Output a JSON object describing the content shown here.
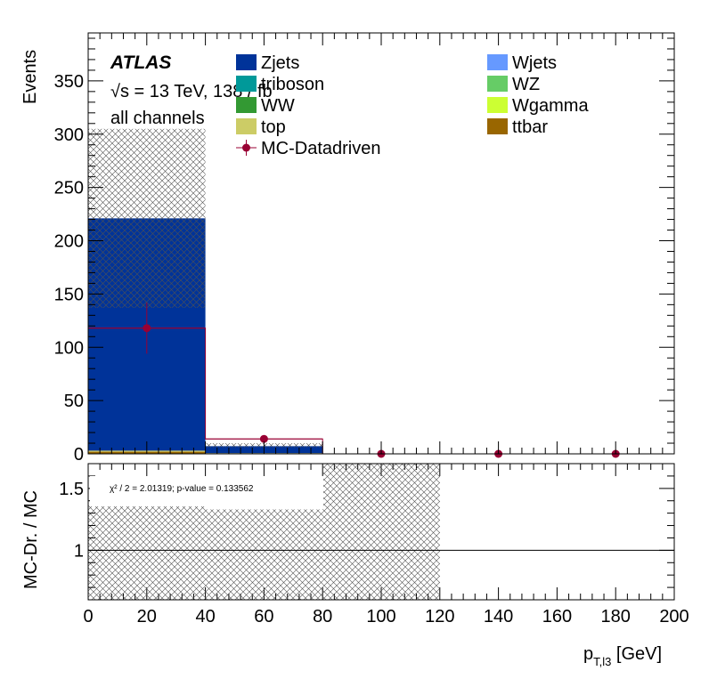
{
  "atlas": {
    "label": "ATLAS",
    "energy_line": "√s = 13 TeV, 138 / fb",
    "channel": "all channels"
  },
  "legend": [
    {
      "label": "Zjets",
      "color": "#003399",
      "kind": "box"
    },
    {
      "label": "Wjets",
      "color": "#6699ff",
      "kind": "box"
    },
    {
      "label": "triboson",
      "color": "#009999",
      "kind": "box"
    },
    {
      "label": "WZ",
      "color": "#66cc66",
      "kind": "box"
    },
    {
      "label": "WW",
      "color": "#339933",
      "kind": "box"
    },
    {
      "label": "Wgamma",
      "color": "#ccff33",
      "kind": "box"
    },
    {
      "label": "top",
      "color": "#cccc66",
      "kind": "box"
    },
    {
      "label": "ttbar",
      "color": "#996600",
      "kind": "box"
    },
    {
      "label": "MC-Datadriven",
      "color": "#990033",
      "kind": "marker"
    }
  ],
  "chart_data": [
    {
      "type": "bar",
      "panel": "main",
      "xlabel_main": "p",
      "xlabel_sub": "T,l3",
      "xlabel_unit": " [GeV]",
      "ylabel": "Events",
      "xlim": [
        0,
        200
      ],
      "ylim": [
        0,
        395
      ],
      "x_ticks": [
        0,
        20,
        40,
        60,
        80,
        100,
        120,
        140,
        160,
        180,
        200
      ],
      "y_ticks": [
        0,
        50,
        100,
        150,
        200,
        250,
        300,
        350
      ],
      "bins": [
        [
          0,
          40
        ],
        [
          40,
          80
        ],
        [
          80,
          120
        ],
        [
          120,
          160
        ],
        [
          160,
          200
        ]
      ],
      "stack": [
        {
          "name": "ttbar",
          "values": [
            2,
            0.5,
            0,
            0,
            0
          ]
        },
        {
          "name": "top",
          "values": [
            1,
            0.2,
            0,
            0,
            0
          ]
        },
        {
          "name": "Zjets",
          "values": [
            218,
            6.5,
            0,
            0,
            0
          ]
        }
      ],
      "mc_uncertainty": {
        "down": [
          137,
          6,
          0,
          0,
          0
        ],
        "up": [
          305,
          10,
          0,
          0,
          0
        ]
      },
      "overlay_histogram": {
        "name": "MC-Datadriven",
        "values": [
          118,
          14,
          0,
          0,
          0
        ]
      },
      "points": {
        "name": "MC-Datadriven",
        "x": [
          20,
          60,
          100,
          140,
          180
        ],
        "y": [
          118,
          14,
          0,
          0,
          0
        ],
        "yerr": [
          24,
          2.5,
          0,
          0,
          0
        ]
      }
    },
    {
      "type": "scatter",
      "panel": "ratio",
      "ylabel": "MC-Dr. / MC",
      "xlim": [
        0,
        200
      ],
      "ylim": [
        0.6,
        1.7
      ],
      "y_ticks": [
        1,
        1.5
      ],
      "y_minor_step": 0.1,
      "reference_line": 1,
      "bins": [
        [
          0,
          40
        ],
        [
          40,
          80
        ],
        [
          80,
          120
        ]
      ],
      "band_down": [
        0.6,
        0.6,
        0.6
      ],
      "band_up": [
        1.36,
        1.33,
        1.7
      ],
      "chi2_text": "χ² / 2 = 2.01319; p-value = 0.133562"
    }
  ]
}
